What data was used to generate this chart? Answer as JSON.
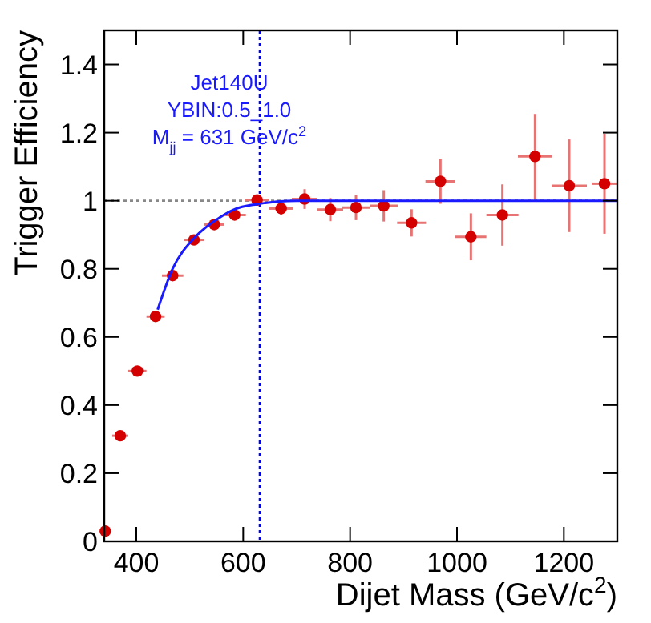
{
  "chart_data": {
    "type": "scatter",
    "xlabel": "Dijet Mass (GeV/c$^{2}$)",
    "ylabel": "Trigger Efficiency",
    "xlim": [
      340,
      1300
    ],
    "ylim": [
      0,
      1.5
    ],
    "xticks": [
      400,
      600,
      800,
      1000,
      1200
    ],
    "yticks": [
      0,
      0.2,
      0.4,
      0.6,
      0.8,
      1,
      1.2,
      1.4
    ],
    "grid": false,
    "series": [
      {
        "marker": "circle",
        "color": "#d40000",
        "x": [
          342,
          370,
          402,
          436,
          468,
          508,
          546,
          584,
          626,
          671,
          715,
          763,
          811,
          863,
          915,
          969,
          1026,
          1085,
          1146,
          1210,
          1276
        ],
        "values": [
          0.03,
          0.31,
          0.5,
          0.66,
          0.78,
          0.885,
          0.93,
          0.958,
          1.002,
          0.977,
          1.005,
          0.974,
          0.98,
          0.985,
          0.935,
          1.057,
          0.894,
          0.958,
          1.13,
          1.044,
          1.05
        ],
        "errors": [
          0.01,
          0.01,
          0.01,
          0.01,
          0.012,
          0.012,
          0.012,
          0.014,
          0.016,
          0.019,
          0.029,
          0.034,
          0.037,
          0.046,
          0.04,
          0.066,
          0.069,
          0.09,
          0.125,
          0.136,
          0.147
        ],
        "xerrors": [
          null,
          15,
          17,
          17,
          20,
          19,
          19,
          21,
          22,
          22,
          24,
          24,
          26,
          26,
          27,
          28,
          29,
          30,
          32,
          33,
          24
        ]
      },
      {
        "type": "line",
        "color": "#1a1aff",
        "x": [
          440,
          468,
          508,
          546,
          584,
          626,
          700,
          800,
          1300
        ],
        "values": [
          0.68,
          0.8,
          0.89,
          0.94,
          0.975,
          0.99,
          1.0,
          1.0,
          1.0
        ]
      }
    ],
    "ref_lines": [
      {
        "axis": "x",
        "value": 631,
        "color": "#0000ff",
        "line_style": "dotted"
      },
      {
        "axis": "y",
        "value": 1,
        "color": "#888888",
        "line_style": "dotted"
      }
    ],
    "annotations": [
      "Jet140U",
      "YBIN:0.5_1.0",
      "M$_{jj}$ = 631 GeV/c$^{2}$"
    ]
  }
}
